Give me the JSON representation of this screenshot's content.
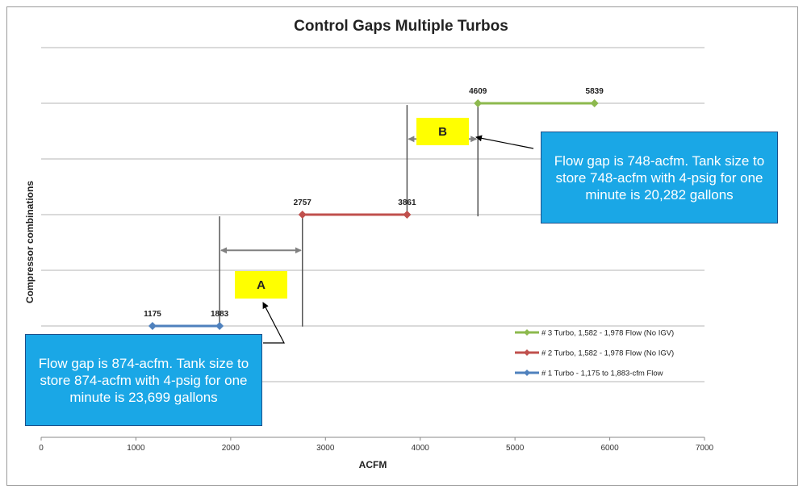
{
  "chart_data": {
    "type": "line",
    "title": "Control Gaps Multiple Turbos",
    "xlabel": "ACFM",
    "ylabel": "Compressor combinations",
    "xlim": [
      0,
      7000
    ],
    "ylim": [
      0,
      7
    ],
    "x_ticks": [
      0,
      1000,
      2000,
      3000,
      4000,
      5000,
      6000,
      7000
    ],
    "grid": true,
    "legend_position": "bottom-right",
    "series": [
      {
        "name": "# 3 Turbo, 1,582 - 1,978 Flow (No IGV)",
        "color": "#8db94e",
        "points": [
          {
            "x": 4609,
            "y": 6,
            "label": "4609"
          },
          {
            "x": 5839,
            "y": 6,
            "label": "5839"
          }
        ]
      },
      {
        "name": "# 2 Turbo, 1,582 - 1,978 Flow (No IGV)",
        "color": "#c0504d",
        "points": [
          {
            "x": 2757,
            "y": 4,
            "label": "2757"
          },
          {
            "x": 3861,
            "y": 4,
            "label": "3861"
          }
        ]
      },
      {
        "name": "# 1 Turbo - 1,175 to 1,883-cfm Flow",
        "color": "#4f81bd",
        "points": [
          {
            "x": 1175,
            "y": 2,
            "label": "1175"
          },
          {
            "x": 1883,
            "y": 2,
            "label": "1883"
          }
        ]
      }
    ],
    "gaps": [
      {
        "label": "A",
        "from": 1883,
        "to": 2757,
        "y": 3.3
      },
      {
        "label": "B",
        "from": 3861,
        "to": 4609,
        "y": 5.3
      }
    ],
    "callouts": [
      {
        "id": "A",
        "text": "Flow gap is 874-acfm.  Tank size to store 874-acfm with 4-psig for one minute is 23,699 gallons"
      },
      {
        "id": "B",
        "text": "Flow gap is 748-acfm.  Tank size to store 748-acfm with 4-psig for one minute is 20,282 gallons"
      }
    ],
    "colors": {
      "gap_box": "#ffff00",
      "callout_bg": "#1aa7e6",
      "callout_border": "#1d4f8a",
      "gap_arrow": "#808080"
    }
  }
}
